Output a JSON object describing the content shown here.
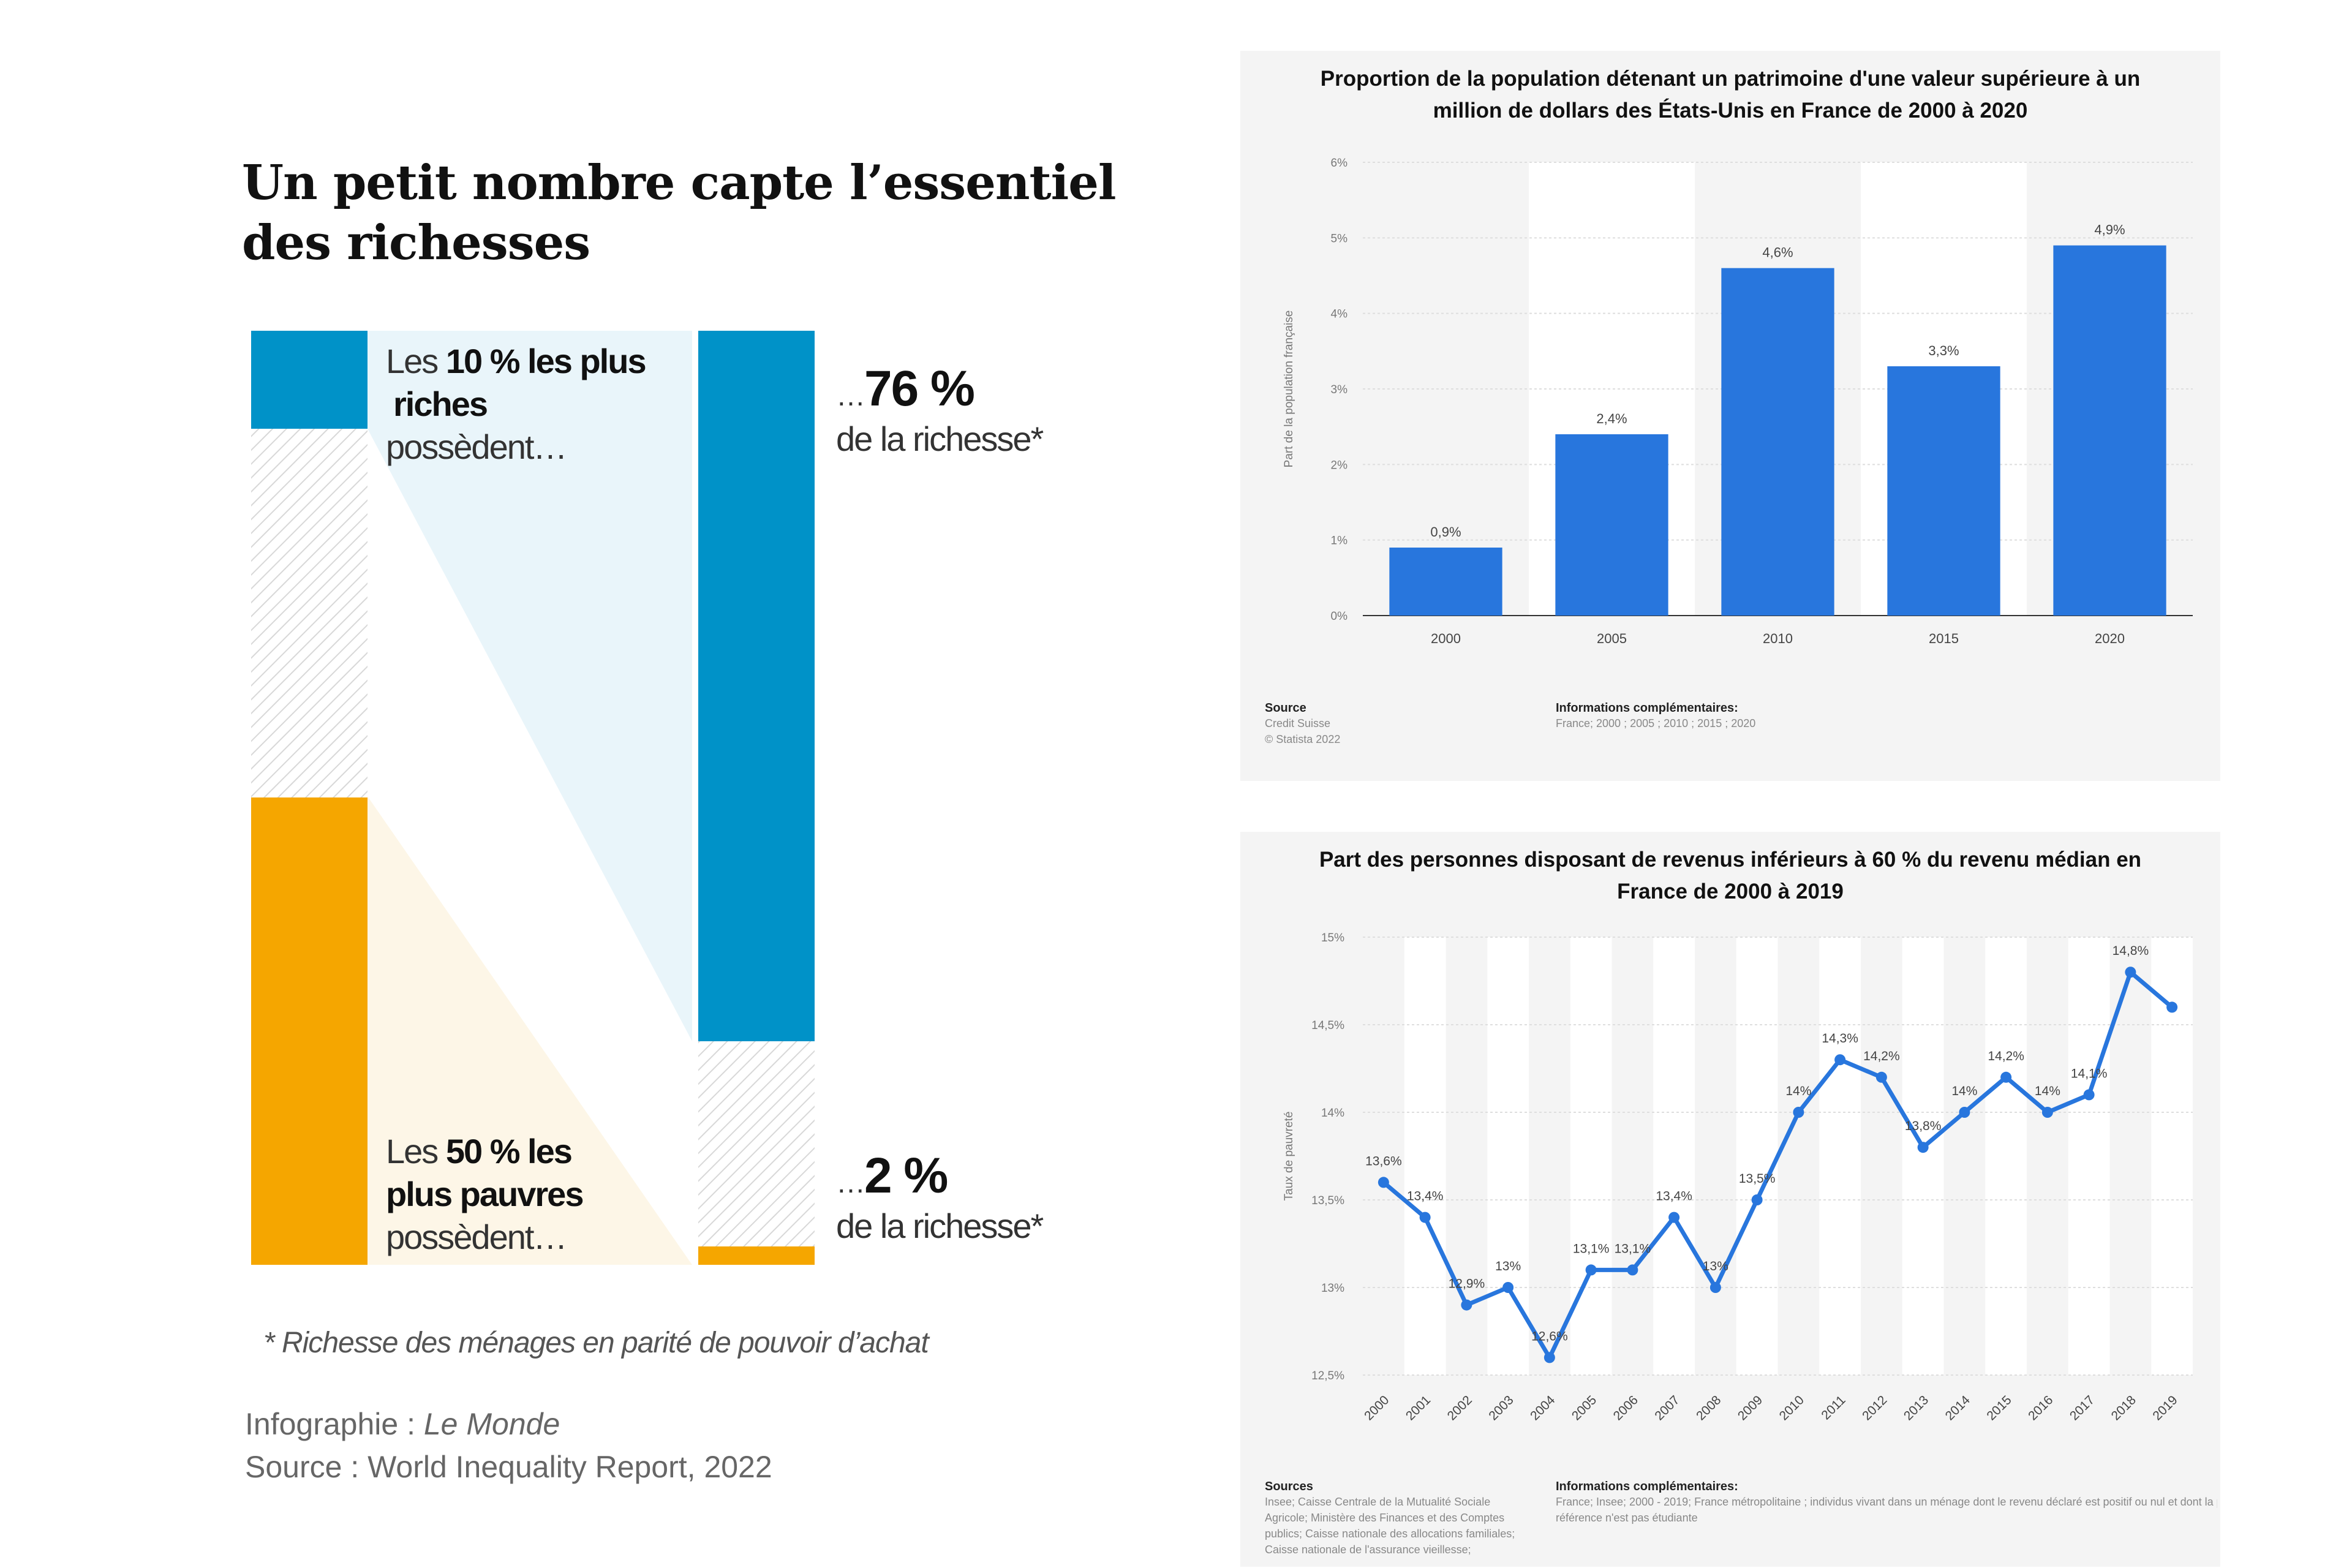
{
  "left": {
    "title_line1": "Un petit nombre capte l’essentiel",
    "title_line2": "des richesses",
    "top_label": {
      "pre": "Les ",
      "bold1": "10 % les plus",
      "bold2": "riches",
      "post": "possèdent…"
    },
    "top_value": {
      "ellipsis": "…",
      "value": "76 %",
      "sub": "de la richesse*"
    },
    "bottom_label": {
      "pre": "Les ",
      "bold1": "50 % les",
      "bold2": "plus pauvres",
      "post": "possèdent…"
    },
    "bottom_value": {
      "ellipsis": "…",
      "value": "2 %",
      "sub": "de la richesse*"
    },
    "footnote": "* Richesse des ménages en parité de pouvoir d’achat",
    "credit_label": "Infographie : ",
    "credit_name": "Le Monde",
    "source": "Source : World Inequality Report, 2022",
    "colors": {
      "rich": "#0092c8",
      "poor": "#f5a600",
      "rich_light": "#e9f5fa",
      "poor_light": "#fdf6e7"
    }
  },
  "chart_data": [
    {
      "type": "bar",
      "title": "Proportion de la population détenant un patrimoine d'une valeur supérieure à un million de dollars des États-Unis en France de 2000 à 2020",
      "title_line1": "Proportion de la population détenant un patrimoine d'une valeur supérieure à un",
      "title_line2": "million de dollars des États-Unis en France de 2000 à 2020",
      "ylabel": "Part de la population française",
      "categories": [
        "2000",
        "2005",
        "2010",
        "2015",
        "2020"
      ],
      "values": [
        0.9,
        2.4,
        4.6,
        3.3,
        4.9
      ],
      "value_labels": [
        "0,9%",
        "2,4%",
        "4,6%",
        "3,3%",
        "4,9%"
      ],
      "ylim": [
        0,
        6
      ],
      "yticks": [
        "0%",
        "1%",
        "2%",
        "3%",
        "4%",
        "5%",
        "6%"
      ],
      "color": "#2876dd",
      "grid": true,
      "source_header": "Source",
      "source_lines": [
        "Credit Suisse",
        "© Statista 2022"
      ],
      "info_header": "Informations complémentaires:",
      "info_lines": [
        "France; 2000 ; 2005 ; 2010 ; 2015 ; 2020"
      ]
    },
    {
      "type": "line",
      "title": "Part des personnes disposant de revenus inférieurs à 60 % du revenu médian en France de 2000 à 2019",
      "title_line1": "Part des personnes disposant de revenus inférieurs à 60 % du revenu médian en",
      "title_line2": "France de 2000 à 2019",
      "ylabel": "Taux de pauvreté",
      "x": [
        "2000",
        "2001",
        "2002",
        "2003",
        "2004",
        "2005",
        "2006",
        "2007",
        "2008",
        "2009",
        "2010",
        "2011",
        "2012",
        "2013",
        "2014",
        "2015",
        "2016",
        "2017",
        "2018",
        "2019"
      ],
      "values": [
        13.6,
        13.4,
        12.9,
        13.0,
        12.6,
        13.1,
        13.1,
        13.4,
        13.0,
        13.5,
        14.0,
        14.3,
        14.2,
        13.8,
        14.0,
        14.2,
        14.0,
        14.1,
        14.8,
        14.6
      ],
      "value_labels": [
        "13,6%",
        "13,4%",
        "12,9%",
        "13%",
        "12,6%",
        "13,1%",
        "13,1%",
        "13,4%",
        "13%",
        "13,5%",
        "14%",
        "14,3%",
        "14,2%",
        "13,8%",
        "14%",
        "14,2%",
        "14%",
        "14,1%",
        "14,8%",
        ""
      ],
      "ylim": [
        12.5,
        15
      ],
      "yticks": [
        "12,5%",
        "13%",
        "13,5%",
        "14%",
        "14,5%",
        "15%"
      ],
      "color": "#2876dd",
      "grid": true,
      "source_header": "Sources",
      "source_lines": [
        "Insee; Caisse Centrale de la Mutualité Sociale",
        "Agricole; Ministère des Finances et des Comptes",
        "publics; Caisse nationale des allocations familiales;",
        "Caisse nationale de l'assurance vieillesse;"
      ],
      "info_header": "Informations complémentaires:",
      "info_lines": [
        "France; Insee; 2000 - 2019; France métropolitaine ; individus vivant dans un ménage dont le revenu déclaré est positif ou nul et dont la personne de",
        "référence n'est pas étudiante"
      ]
    }
  ]
}
